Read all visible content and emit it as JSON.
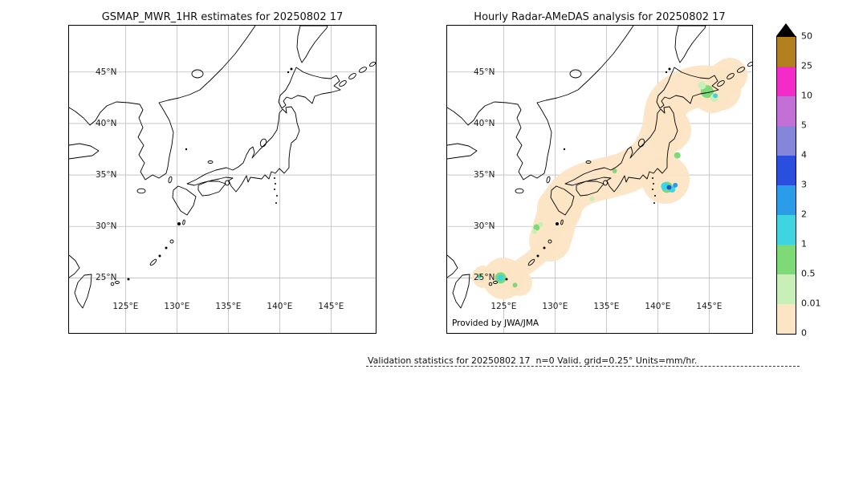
{
  "figure": {
    "left_title": "GSMAP_MWR_1HR estimates for 20250802 17",
    "right_title": "Hourly Radar-AMeDAS analysis for 20250802 17",
    "credit": "Provided by JWA/JMA",
    "footer": "Validation statistics for 20250802 17  n=0 Valid. grid=0.25° Units=mm/hr."
  },
  "chart_data": {
    "type": "heatmap",
    "panels": [
      {
        "title": "GSMAP_MWR_1HR estimates for 20250802 17",
        "content": "blank basemap of Japan region, no satellite precipitation estimates plotted"
      },
      {
        "title": "Hourly Radar-AMeDAS analysis for 20250802 17",
        "content": "radar coverage band around Japan shaded at lowest bin with scattered light-rain cells (0.5-5 mm/hr)",
        "credit": "Provided by JWA/JMA"
      }
    ],
    "map": {
      "lon_range": [
        119.5,
        149.5
      ],
      "lat_range": [
        19.5,
        49.5
      ],
      "lon_ticks": [
        {
          "lon": 125,
          "label": "125°E"
        },
        {
          "lon": 130,
          "label": "130°E"
        },
        {
          "lon": 135,
          "label": "135°E"
        },
        {
          "lon": 140,
          "label": "140°E"
        },
        {
          "lon": 145,
          "label": "145°E"
        }
      ],
      "lat_ticks": [
        {
          "lat": 45,
          "label": "45°N"
        },
        {
          "lat": 40,
          "label": "40°N"
        },
        {
          "lat": 35,
          "label": "35°N"
        },
        {
          "lat": 30,
          "label": "30°N"
        },
        {
          "lat": 25,
          "label": "25°N"
        }
      ]
    },
    "colorbar": {
      "units": "mm/hr",
      "tick_labels": [
        "50",
        "25",
        "10",
        "5",
        "4",
        "3",
        "2",
        "1",
        "0.5",
        "0.01",
        "0"
      ],
      "segment_colors_top_to_bottom": [
        "#b2811e",
        "#f32bc8",
        "#c26fd6",
        "#8585d9",
        "#2a4fdf",
        "#2b9ce8",
        "#3fd5e0",
        "#7dda76",
        "#c9efb8",
        "#fce5c4"
      ],
      "overflow_triangle_color": "#000000"
    },
    "precip_spots": [
      {
        "lon": 144.8,
        "lat": 43.1,
        "r": 8,
        "color": "#7dda76"
      },
      {
        "lon": 145.5,
        "lat": 42.5,
        "r": 5,
        "color": "#c9efb8"
      },
      {
        "lon": 144.3,
        "lat": 43.7,
        "r": 5,
        "color": "#c9efb8"
      },
      {
        "lon": 145.6,
        "lat": 42.7,
        "r": 3,
        "color": "#3fd5e0"
      },
      {
        "lon": 141.9,
        "lat": 36.9,
        "r": 4,
        "color": "#7dda76"
      },
      {
        "lon": 135.8,
        "lat": 35.4,
        "r": 3,
        "color": "#7dda76"
      },
      {
        "lon": 133.6,
        "lat": 32.7,
        "r": 3,
        "color": "#c9efb8"
      },
      {
        "lon": 140.9,
        "lat": 33.8,
        "r": 7,
        "color": "#7dda76"
      },
      {
        "lon": 140.7,
        "lat": 33.9,
        "r": 5,
        "color": "#3fd5e0"
      },
      {
        "lon": 141.4,
        "lat": 33.6,
        "r": 4,
        "color": "#3fd5e0"
      },
      {
        "lon": 141.1,
        "lat": 33.8,
        "r": 3,
        "color": "#2a4fdf"
      },
      {
        "lon": 141.7,
        "lat": 34.0,
        "r": 3,
        "color": "#2b9ce8"
      },
      {
        "lon": 128.2,
        "lat": 29.9,
        "r": 4,
        "color": "#7dda76"
      },
      {
        "lon": 128.0,
        "lat": 29.5,
        "r": 3,
        "color": "#c9efb8"
      },
      {
        "lon": 128.6,
        "lat": 30.2,
        "r": 3,
        "color": "#c9efb8"
      },
      {
        "lon": 124.7,
        "lat": 25.0,
        "r": 7,
        "color": "#7dda76"
      },
      {
        "lon": 124.7,
        "lat": 25.0,
        "r": 4,
        "color": "#3fd5e0"
      },
      {
        "lon": 126.1,
        "lat": 24.3,
        "r": 3,
        "color": "#7dda76"
      },
      {
        "lon": 122.7,
        "lat": 25.2,
        "r": 3,
        "color": "#7dda76"
      },
      {
        "lon": 122.6,
        "lat": 25.1,
        "r": 2,
        "color": "#3fd5e0"
      }
    ]
  }
}
